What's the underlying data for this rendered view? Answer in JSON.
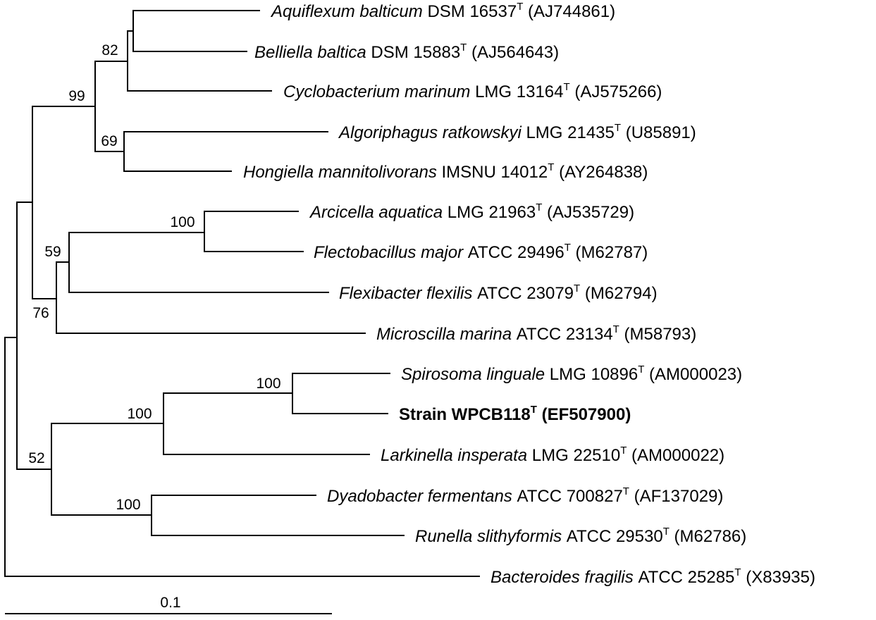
{
  "tree": {
    "taxa": [
      {
        "id": "aquiflexum",
        "genus_species": "Aquiflexum balticum",
        "strain": "DSM 16537",
        "sup": "T",
        "accession": "(AJ744861)",
        "bold": false
      },
      {
        "id": "belliella",
        "genus_species": "Belliella baltica",
        "strain": "DSM 15883",
        "sup": "T",
        "accession": "(AJ564643)",
        "bold": false
      },
      {
        "id": "cyclobacterium",
        "genus_species": "Cyclobacterium marinum",
        "strain": "LMG 13164",
        "sup": "T",
        "accession": "(AJ575266)",
        "bold": false
      },
      {
        "id": "algoriphagus",
        "genus_species": "Algoriphagus ratkowskyi",
        "strain": "LMG 21435",
        "sup": "T",
        "accession": "(U85891)",
        "bold": false
      },
      {
        "id": "hongiella",
        "genus_species": "Hongiella mannitolivorans",
        "strain": "IMSNU 14012",
        "sup": "T",
        "accession": "(AY264838)",
        "bold": false
      },
      {
        "id": "arcicella",
        "genus_species": "Arcicella aquatica",
        "strain": "LMG 21963",
        "sup": "T",
        "accession": "(AJ535729)",
        "bold": false
      },
      {
        "id": "flectobacillus",
        "genus_species": "Flectobacillus major",
        "strain": "ATCC 29496",
        "sup": "T",
        "accession": "(M62787)",
        "bold": false
      },
      {
        "id": "flexibacter",
        "genus_species": "Flexibacter flexilis",
        "strain": "ATCC 23079",
        "sup": "T",
        "accession": "(M62794)",
        "bold": false
      },
      {
        "id": "microscilla",
        "genus_species": "Microscilla marina",
        "strain": "ATCC 23134",
        "sup": "T",
        "accession": "(M58793)",
        "bold": false
      },
      {
        "id": "spirosoma",
        "genus_species": "Spirosoma linguale",
        "strain": "LMG 10896",
        "sup": "T",
        "accession": "(AM000023)",
        "bold": false
      },
      {
        "id": "wpcb118",
        "genus_species": "",
        "strain": "Strain WPCB118",
        "sup": "T",
        "accession": "(EF507900)",
        "bold": true
      },
      {
        "id": "larkinella",
        "genus_species": "Larkinella insperata",
        "strain": "LMG 22510",
        "sup": "T",
        "accession": "(AM000022)",
        "bold": false
      },
      {
        "id": "dyadobacter",
        "genus_species": "Dyadobacter fermentans",
        "strain": "ATCC 700827",
        "sup": "T",
        "accession": "(AF137029)",
        "bold": false
      },
      {
        "id": "runella",
        "genus_species": "Runella slithyformis",
        "strain": "ATCC 29530",
        "sup": "T",
        "accession": "(M62786)",
        "bold": false
      },
      {
        "id": "bacteroides",
        "genus_species": "Bacteroides fragilis",
        "strain": "ATCC 25285",
        "sup": "T",
        "accession": "(X83935)",
        "bold": false
      }
    ],
    "bootstrap_values": [
      {
        "node": "aquiflexum-belliella-cyclobacterium",
        "value": "82"
      },
      {
        "node": "cyclobacterium-algoriphagus-clade",
        "value": "99"
      },
      {
        "node": "algoriphagus-hongiella",
        "value": "69"
      },
      {
        "node": "arcicella-flectobacillus",
        "value": "100"
      },
      {
        "node": "arcicella-flexibacter",
        "value": "59"
      },
      {
        "node": "arcicella-microscilla",
        "value": "76"
      },
      {
        "node": "spirosoma-wpcb118",
        "value": "100"
      },
      {
        "node": "spirosoma-larkinella",
        "value": "100"
      },
      {
        "node": "dyadobacter-runella",
        "value": "100"
      },
      {
        "node": "spirosoma-dyadobacter",
        "value": "52"
      }
    ],
    "scale_bar_label": "0.1"
  }
}
